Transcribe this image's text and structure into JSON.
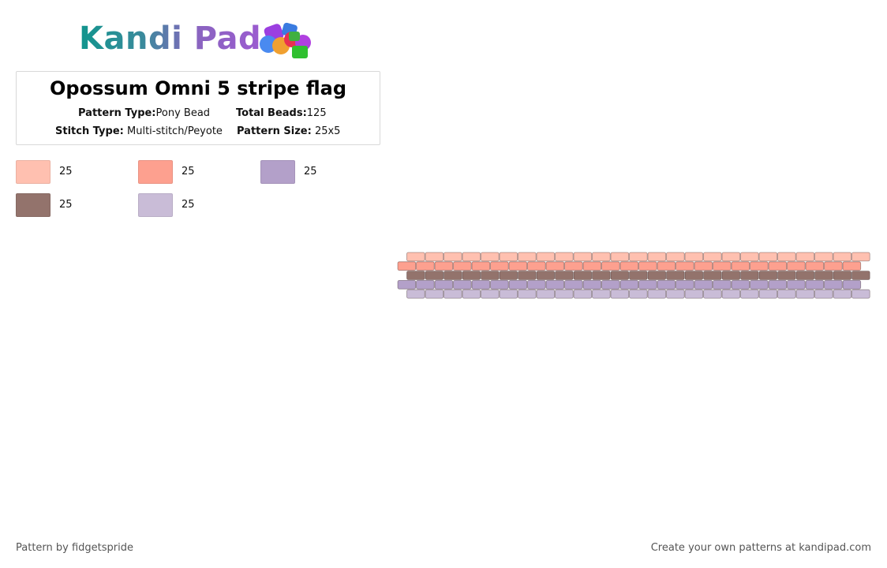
{
  "logo": {
    "text": "Kandi Pad",
    "icon": "bead-cluster-icon"
  },
  "pattern": {
    "title": "Opossum Omni 5 stripe flag",
    "type_label": "Pattern Type:",
    "type_value": "Pony Bead",
    "beads_label": "Total Beads:",
    "beads_value": "125",
    "stitch_label": "Stitch Type:",
    "stitch_value": "Multi-stitch/Peyote",
    "size_label": "Pattern Size:",
    "size_value": "25x5"
  },
  "colors": [
    {
      "hex": "#ffc0b0",
      "count": "25"
    },
    {
      "hex": "#fda08f",
      "count": "25"
    },
    {
      "hex": "#b3a0c9",
      "count": "25"
    },
    {
      "hex": "#93736c",
      "count": "25"
    },
    {
      "hex": "#c9bcd7",
      "count": "25"
    }
  ],
  "grid": {
    "columns": 25,
    "rows": [
      {
        "color": "#ffc0b0",
        "offset": true
      },
      {
        "color": "#fda08f",
        "offset": false
      },
      {
        "color": "#93736c",
        "offset": true
      },
      {
        "color": "#b3a0c9",
        "offset": false
      },
      {
        "color": "#c9bcd7",
        "offset": true
      }
    ]
  },
  "footer": {
    "author": "Pattern by fidgetspride",
    "promo": "Create your own patterns at kandipad.com"
  }
}
